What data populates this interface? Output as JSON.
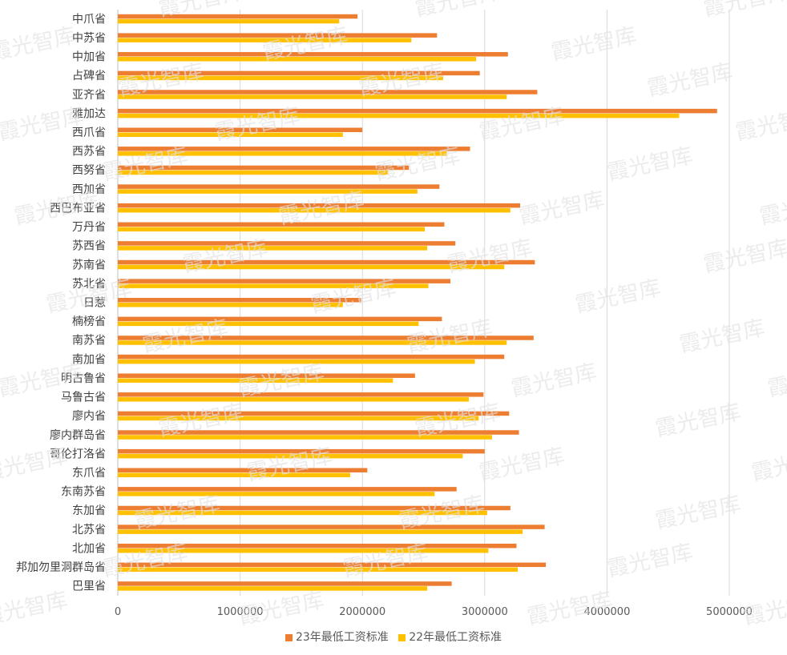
{
  "chart_data": {
    "type": "bar",
    "orientation": "horizontal",
    "categories": [
      "中爪省",
      "中苏省",
      "中加省",
      "占碑省",
      "亚齐省",
      "雅加达",
      "西爪省",
      "西苏省",
      "西努省",
      "西加省",
      "西巴布亚省",
      "万丹省",
      "苏西省",
      "苏南省",
      "苏北省",
      "日惹",
      "楠榜省",
      "南苏省",
      "南加省",
      "明古鲁省",
      "马鲁古省",
      "廖内省",
      "廖内群岛省",
      "哥伦打洛省",
      "东爪省",
      "东南苏省",
      "东加省",
      "北苏省",
      "北加省",
      "邦加勿里洞群岛省",
      "巴里省"
    ],
    "series": [
      {
        "name": "23年最低工资标准",
        "color": "#ED7D31",
        "values": [
          1960000,
          2610000,
          3190000,
          2960000,
          3430000,
          4900000,
          2000000,
          2880000,
          2380000,
          2630000,
          3290000,
          2670000,
          2760000,
          3410000,
          2720000,
          1990000,
          2650000,
          3400000,
          3160000,
          2430000,
          2990000,
          3200000,
          3280000,
          3000000,
          2040000,
          2770000,
          3210000,
          3490000,
          3260000,
          3500000,
          2730000
        ]
      },
      {
        "name": "22年最低工资标准",
        "color": "#FFC000",
        "values": [
          1810000,
          2400000,
          2930000,
          2660000,
          3180000,
          4590000,
          1840000,
          2690000,
          2210000,
          2450000,
          3210000,
          2510000,
          2530000,
          3160000,
          2540000,
          1840000,
          2460000,
          3180000,
          2920000,
          2250000,
          2870000,
          2950000,
          3060000,
          2820000,
          1900000,
          2590000,
          3020000,
          3310000,
          3030000,
          3270000,
          2530000
        ]
      }
    ],
    "xlim": [
      0,
      5000000
    ],
    "xticks": [
      "0",
      "1000000",
      "2000000",
      "3000000",
      "4000000",
      "5000000"
    ],
    "grid": true,
    "legend_position": "bottom",
    "watermark": "霞光智库"
  }
}
